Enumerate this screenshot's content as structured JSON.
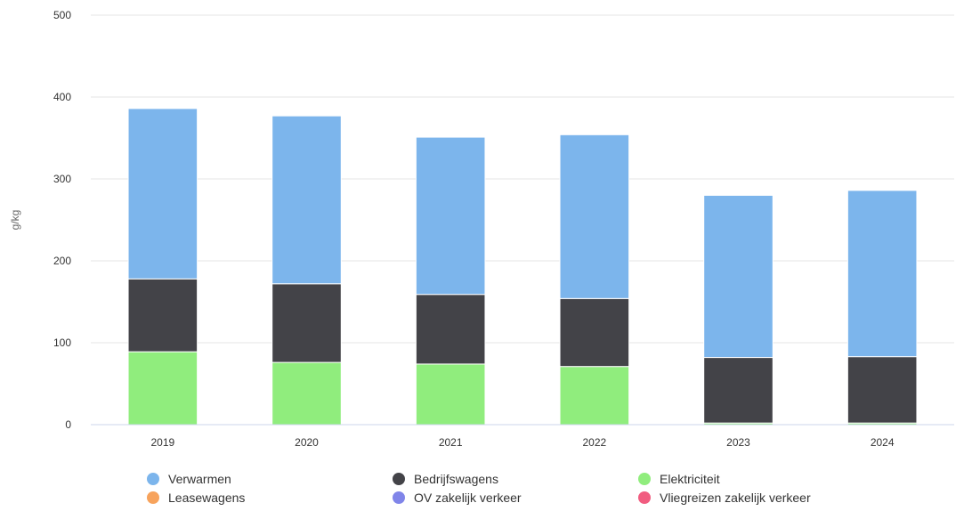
{
  "chart_data": {
    "type": "bar",
    "stacked": true,
    "categories": [
      "2019",
      "2020",
      "2021",
      "2022",
      "2023",
      "2024"
    ],
    "ylabel": "g/kg",
    "xlabel": "",
    "title": "",
    "ylim": [
      0,
      500
    ],
    "yticks": [
      0,
      100,
      200,
      300,
      400,
      500
    ],
    "grid": true,
    "legend_position": "bottom",
    "series": [
      {
        "name": "Elektriciteit",
        "color": "#90ED7D",
        "values": [
          89,
          76,
          74,
          71,
          2,
          2
        ]
      },
      {
        "name": "Bedrijfswagens",
        "color": "#434348",
        "values": [
          89,
          96,
          85,
          83,
          80,
          81
        ]
      },
      {
        "name": "Verwarmen",
        "color": "#7CB5EC",
        "values": [
          208,
          205,
          192,
          200,
          198,
          203
        ]
      },
      {
        "name": "Leasewagens",
        "color": "#F7A35C",
        "values": [
          0,
          0,
          0,
          0,
          0,
          0
        ]
      },
      {
        "name": "OV zakelijk verkeer",
        "color": "#8085E9",
        "values": [
          0,
          0,
          0,
          0,
          0,
          0
        ]
      },
      {
        "name": "Vliegreizen zakelijk verkeer",
        "color": "#F15C80",
        "values": [
          0,
          0,
          0,
          0,
          0,
          0
        ]
      }
    ],
    "legend_order": [
      "Verwarmen",
      "Bedrijfswagens",
      "Elektriciteit",
      "Leasewagens",
      "OV zakelijk verkeer",
      "Vliegreizen zakelijk verkeer"
    ]
  }
}
